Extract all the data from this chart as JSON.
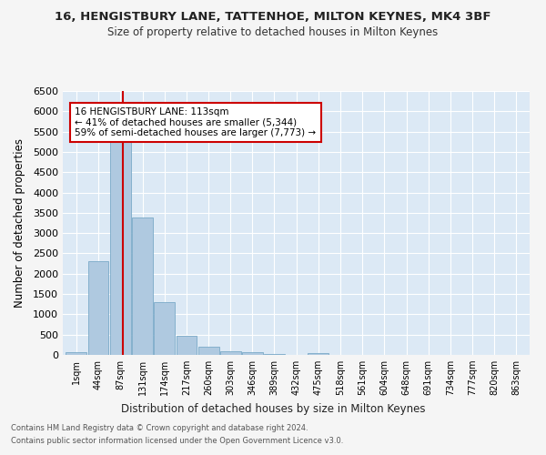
{
  "title1": "16, HENGISTBURY LANE, TATTENHOE, MILTON KEYNES, MK4 3BF",
  "title2": "Size of property relative to detached houses in Milton Keynes",
  "xlabel": "Distribution of detached houses by size in Milton Keynes",
  "ylabel": "Number of detached properties",
  "bar_color": "#afc9e0",
  "bar_edge_color": "#7aaac8",
  "bin_labels": [
    "1sqm",
    "44sqm",
    "87sqm",
    "131sqm",
    "174sqm",
    "217sqm",
    "260sqm",
    "303sqm",
    "346sqm",
    "389sqm",
    "432sqm",
    "475sqm",
    "518sqm",
    "561sqm",
    "604sqm",
    "648sqm",
    "691sqm",
    "734sqm",
    "777sqm",
    "820sqm",
    "863sqm"
  ],
  "bin_edges": [
    1,
    44,
    87,
    131,
    174,
    217,
    260,
    303,
    346,
    389,
    432,
    475,
    518,
    561,
    604,
    648,
    691,
    734,
    777,
    820,
    863,
    906
  ],
  "bar_heights": [
    75,
    2300,
    5400,
    3380,
    1300,
    475,
    210,
    100,
    60,
    30,
    10,
    55,
    0,
    0,
    0,
    0,
    0,
    0,
    0,
    0,
    0
  ],
  "property_size": 113,
  "vline_color": "#cc0000",
  "ylim": [
    0,
    6500
  ],
  "yticks": [
    0,
    500,
    1000,
    1500,
    2000,
    2500,
    3000,
    3500,
    4000,
    4500,
    5000,
    5500,
    6000,
    6500
  ],
  "annotation_text": "16 HENGISTBURY LANE: 113sqm\n← 41% of detached houses are smaller (5,344)\n59% of semi-detached houses are larger (7,773) →",
  "annotation_box_facecolor": "#ffffff",
  "annotation_box_edgecolor": "#cc0000",
  "fig_facecolor": "#f5f5f5",
  "axes_facecolor": "#dce9f5",
  "grid_color": "#ffffff",
  "footnote1": "Contains HM Land Registry data © Crown copyright and database right 2024.",
  "footnote2": "Contains public sector information licensed under the Open Government Licence v3.0."
}
